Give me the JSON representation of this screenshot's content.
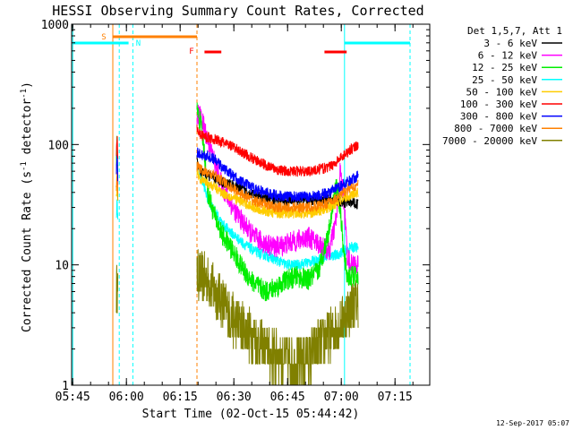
{
  "chart_data": {
    "type": "line",
    "title": "HESSI Observing Summary Count Rates, Corrected",
    "xlabel": "Start Time (02-Oct-15 05:44:42)",
    "ylabel_main": "Corrected Count Rate (s",
    "ylabel_sup1": "-1",
    "ylabel_mid": " detector",
    "ylabel_sup2": "-1",
    "ylabel_end": ")",
    "y_scale": "log",
    "ylim": [
      1,
      1000
    ],
    "xlim_minutes": [
      0,
      100
    ],
    "x_ticks": [
      {
        "m": 0.3,
        "label": "05:45"
      },
      {
        "m": 15.3,
        "label": "06:00"
      },
      {
        "m": 30.3,
        "label": "06:15"
      },
      {
        "m": 45.3,
        "label": "06:30"
      },
      {
        "m": 60.3,
        "label": "06:45"
      },
      {
        "m": 75.3,
        "label": "07:00"
      },
      {
        "m": 90.3,
        "label": "07:15"
      }
    ],
    "y_ticks": [
      {
        "v": 1,
        "label": "1"
      },
      {
        "v": 10,
        "label": "10"
      },
      {
        "v": 100,
        "label": "100"
      },
      {
        "v": 1000,
        "label": "1000"
      }
    ],
    "legend_title": "Det 1,5,7, Att 1",
    "legend_position": "right",
    "timestamp": "12-Sep-2017 05:07",
    "series": [
      {
        "name": "3 - 6 keV",
        "color": "#000000",
        "g1": [
          [
            12.5,
            40
          ],
          [
            12.7,
            50
          ],
          [
            12.9,
            38
          ]
        ],
        "g2": [
          [
            35,
            75
          ],
          [
            36,
            58
          ],
          [
            38,
            56
          ],
          [
            40,
            52
          ],
          [
            42,
            49
          ],
          [
            45,
            46
          ],
          [
            48,
            42
          ],
          [
            51,
            38
          ],
          [
            54,
            36
          ],
          [
            57,
            35
          ],
          [
            60,
            34
          ],
          [
            63,
            34
          ],
          [
            66,
            35
          ],
          [
            69,
            34
          ],
          [
            72,
            35
          ],
          [
            74,
            34
          ],
          [
            76,
            33
          ],
          [
            78,
            33
          ],
          [
            80,
            32
          ]
        ]
      },
      {
        "name": "6 - 12 keV",
        "color": "#ff00ff",
        "g1": [
          [
            12.5,
            60
          ],
          [
            12.7,
            90
          ],
          [
            12.9,
            55
          ]
        ],
        "g2": [
          [
            35,
            180
          ],
          [
            36,
            170
          ],
          [
            37,
            140
          ],
          [
            38,
            110
          ],
          [
            40,
            70
          ],
          [
            42,
            45
          ],
          [
            45,
            30
          ],
          [
            48,
            22
          ],
          [
            51,
            17
          ],
          [
            54,
            15
          ],
          [
            57,
            14
          ],
          [
            60,
            15
          ],
          [
            63,
            16
          ],
          [
            66,
            17
          ],
          [
            69,
            15
          ],
          [
            72,
            13
          ],
          [
            74,
            25
          ],
          [
            75,
            60
          ],
          [
            76,
            35
          ],
          [
            77,
            12
          ],
          [
            78,
            10
          ],
          [
            80,
            10
          ]
        ]
      },
      {
        "name": "12 - 25 keV",
        "color": "#00ee00",
        "g1": [
          [
            12.5,
            70
          ],
          [
            12.7,
            110
          ],
          [
            12.9,
            60
          ]
        ],
        "g2": [
          [
            35,
            190
          ],
          [
            36,
            150
          ],
          [
            37,
            90
          ],
          [
            38,
            40
          ],
          [
            40,
            25
          ],
          [
            42,
            18
          ],
          [
            45,
            13
          ],
          [
            48,
            9
          ],
          [
            51,
            7
          ],
          [
            54,
            6
          ],
          [
            57,
            6.5
          ],
          [
            60,
            7.5
          ],
          [
            63,
            8
          ],
          [
            66,
            7.5
          ],
          [
            69,
            9
          ],
          [
            72,
            20
          ],
          [
            73,
            35
          ],
          [
            74,
            45
          ],
          [
            75,
            30
          ],
          [
            76,
            12
          ],
          [
            77,
            8
          ],
          [
            80,
            8
          ]
        ]
      },
      {
        "name": "25 - 50 keV",
        "color": "#00ffff",
        "g1": [
          [
            12.5,
            25
          ],
          [
            12.7,
            35
          ],
          [
            12.9,
            22
          ]
        ],
        "g2": [
          [
            35,
            70
          ],
          [
            36,
            55
          ],
          [
            37,
            45
          ],
          [
            38,
            35
          ],
          [
            40,
            28
          ],
          [
            42,
            22
          ],
          [
            45,
            18
          ],
          [
            48,
            15
          ],
          [
            51,
            13
          ],
          [
            54,
            12
          ],
          [
            57,
            11
          ],
          [
            60,
            10
          ],
          [
            63,
            10
          ],
          [
            66,
            10.5
          ],
          [
            69,
            11
          ],
          [
            72,
            12
          ],
          [
            74,
            12
          ],
          [
            76,
            13
          ],
          [
            78,
            14
          ],
          [
            80,
            14
          ]
        ]
      },
      {
        "name": "50 - 100 keV",
        "color": "#ffcc00",
        "g1": [
          [
            12.5,
            38
          ],
          [
            12.7,
            45
          ],
          [
            12.9,
            35
          ]
        ],
        "g2": [
          [
            35,
            60
          ],
          [
            36,
            52
          ],
          [
            38,
            48
          ],
          [
            40,
            44
          ],
          [
            42,
            40
          ],
          [
            45,
            36
          ],
          [
            48,
            33
          ],
          [
            51,
            30
          ],
          [
            54,
            28
          ],
          [
            57,
            27
          ],
          [
            60,
            27
          ],
          [
            63,
            27
          ],
          [
            66,
            27
          ],
          [
            69,
            28
          ],
          [
            72,
            30
          ],
          [
            74,
            33
          ],
          [
            76,
            36
          ],
          [
            78,
            38
          ],
          [
            80,
            40
          ]
        ]
      },
      {
        "name": "100 - 300 keV",
        "color": "#ff0000",
        "g1": [
          [
            12.5,
            85
          ],
          [
            12.7,
            120
          ],
          [
            12.9,
            80
          ]
        ],
        "g2": [
          [
            35,
            140
          ],
          [
            36,
            120
          ],
          [
            38,
            115
          ],
          [
            40,
            110
          ],
          [
            42,
            105
          ],
          [
            45,
            95
          ],
          [
            48,
            85
          ],
          [
            51,
            75
          ],
          [
            54,
            68
          ],
          [
            57,
            62
          ],
          [
            60,
            60
          ],
          [
            63,
            60
          ],
          [
            66,
            60
          ],
          [
            69,
            62
          ],
          [
            72,
            65
          ],
          [
            74,
            72
          ],
          [
            76,
            82
          ],
          [
            78,
            92
          ],
          [
            80,
            100
          ]
        ]
      },
      {
        "name": "300 - 800 keV",
        "color": "#0000ff",
        "g1": [
          [
            12.5,
            60
          ],
          [
            12.7,
            80
          ],
          [
            12.9,
            55
          ]
        ],
        "g2": [
          [
            35,
            85
          ],
          [
            36,
            82
          ],
          [
            38,
            80
          ],
          [
            40,
            75
          ],
          [
            42,
            65
          ],
          [
            45,
            55
          ],
          [
            48,
            48
          ],
          [
            51,
            43
          ],
          [
            54,
            40
          ],
          [
            57,
            38
          ],
          [
            60,
            37
          ],
          [
            63,
            37
          ],
          [
            66,
            37
          ],
          [
            69,
            38
          ],
          [
            72,
            40
          ],
          [
            74,
            43
          ],
          [
            76,
            47
          ],
          [
            78,
            51
          ],
          [
            80,
            55
          ]
        ]
      },
      {
        "name": "800 - 7000 keV",
        "color": "#ff8000",
        "g1": [
          [
            12.5,
            45
          ],
          [
            12.7,
            55
          ],
          [
            12.9,
            40
          ]
        ],
        "g2": [
          [
            35,
            68
          ],
          [
            36,
            62
          ],
          [
            38,
            58
          ],
          [
            40,
            55
          ],
          [
            42,
            50
          ],
          [
            45,
            43
          ],
          [
            48,
            38
          ],
          [
            51,
            34
          ],
          [
            54,
            32
          ],
          [
            57,
            30
          ],
          [
            60,
            30
          ],
          [
            63,
            30
          ],
          [
            66,
            30
          ],
          [
            69,
            31
          ],
          [
            72,
            33
          ],
          [
            74,
            36
          ],
          [
            76,
            40
          ],
          [
            78,
            44
          ],
          [
            80,
            46
          ]
        ]
      },
      {
        "name": "7000 - 20000 keV",
        "color": "#808000",
        "g1": [
          [
            12.5,
            6
          ],
          [
            12.7,
            6.5
          ],
          [
            12.9,
            5.5
          ]
        ],
        "g2": [
          [
            35,
            8.5
          ],
          [
            36,
            8
          ],
          [
            38,
            7.5
          ],
          [
            40,
            6
          ],
          [
            42,
            5
          ],
          [
            45,
            3.5
          ],
          [
            48,
            3
          ],
          [
            51,
            2.5
          ],
          [
            54,
            2
          ],
          [
            57,
            1.8
          ],
          [
            60,
            1.6
          ],
          [
            63,
            1.5
          ],
          [
            66,
            1.7
          ],
          [
            69,
            2.2
          ],
          [
            72,
            2.6
          ],
          [
            74,
            3
          ],
          [
            76,
            3.5
          ],
          [
            78,
            4.5
          ],
          [
            80,
            5
          ]
        ]
      }
    ],
    "flag_markers": [
      {
        "label": "S",
        "color": "#ff8000"
      },
      {
        "label": "N",
        "color": "#00ffff"
      },
      {
        "label": "F",
        "color": "#ff0000"
      }
    ]
  }
}
